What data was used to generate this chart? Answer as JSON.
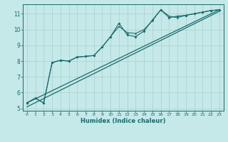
{
  "xlabel": "Humidex (Indice chaleur)",
  "bg_color": "#c5e8e8",
  "line_color": "#1a6b6b",
  "grid_color": "#a8d0d0",
  "xlim": [
    -0.5,
    23.5
  ],
  "ylim": [
    4.85,
    11.6
  ],
  "xticks": [
    0,
    1,
    2,
    3,
    4,
    5,
    6,
    7,
    8,
    9,
    10,
    11,
    12,
    13,
    14,
    15,
    16,
    17,
    18,
    19,
    20,
    21,
    22,
    23
  ],
  "yticks": [
    5,
    6,
    7,
    8,
    9,
    10,
    11
  ],
  "series1_x": [
    0,
    1,
    2,
    3,
    4,
    5,
    6,
    7,
    8,
    9,
    10,
    11,
    12,
    13,
    14,
    15,
    16,
    17,
    18,
    19,
    20,
    21,
    22,
    23
  ],
  "series1_y": [
    5.35,
    5.65,
    5.35,
    7.9,
    8.05,
    8.0,
    8.25,
    8.3,
    8.35,
    8.9,
    9.55,
    10.4,
    9.65,
    9.55,
    9.9,
    10.6,
    11.25,
    10.75,
    10.85,
    10.9,
    11.0,
    11.1,
    11.2,
    11.25
  ],
  "series2_x": [
    0,
    1,
    2,
    3,
    4,
    5,
    6,
    7,
    8,
    9,
    10,
    11,
    12,
    13,
    14,
    15,
    16,
    17,
    18,
    19,
    20,
    21,
    22,
    23
  ],
  "series2_y": [
    5.35,
    5.65,
    5.35,
    7.9,
    8.05,
    8.0,
    8.25,
    8.3,
    8.35,
    8.9,
    9.55,
    10.2,
    9.8,
    9.75,
    10.0,
    10.55,
    11.25,
    10.85,
    10.75,
    10.9,
    11.0,
    11.1,
    11.2,
    11.25
  ],
  "trend1_x": [
    0,
    23
  ],
  "trend1_y": [
    5.35,
    11.25
  ],
  "trend2_x": [
    0,
    23
  ],
  "trend2_y": [
    5.1,
    11.15
  ]
}
